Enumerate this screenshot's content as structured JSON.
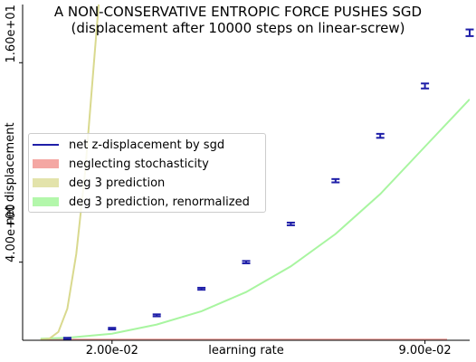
{
  "chart_data": {
    "type": "line",
    "title": "A NON-CONSERVATIVE ENTROPIC FORCE PUSHES SGD",
    "subtitle": "(displacement after 10000 steps on linear-screw)",
    "xlabel": "learning rate",
    "ylabel": "net displacement",
    "xlim": [
      0.0,
      0.1
    ],
    "ylim": [
      -0.7,
      19.5
    ],
    "xticks": [
      {
        "value": 0.02,
        "label": "2.00e-02"
      },
      {
        "value": 0.09,
        "label": "9.00e-02"
      }
    ],
    "yticks": [
      {
        "value": 4.0,
        "label": "4.00e+00"
      },
      {
        "value": 16.0,
        "label": "1.60e+01"
      }
    ],
    "grid": false,
    "legend_position": "center-left",
    "series": [
      {
        "name": "net z-displacement by sgd",
        "kind": "errorbar",
        "color": "#1f1fa8",
        "x": [
          0.01,
          0.02,
          0.03,
          0.04,
          0.05,
          0.06,
          0.07,
          0.08,
          0.09,
          0.1
        ],
        "y": [
          -0.6,
          0.0,
          0.8,
          2.4,
          4.0,
          6.3,
          8.9,
          11.6,
          14.6,
          17.8
        ],
        "err": [
          0.05,
          0.05,
          0.06,
          0.06,
          0.07,
          0.08,
          0.1,
          0.12,
          0.15,
          0.2
        ]
      },
      {
        "name": "neglecting stochasticity",
        "kind": "band",
        "color": "#f4a7a3",
        "x": [
          0.0,
          0.1
        ],
        "y": [
          -0.65,
          -0.65
        ]
      },
      {
        "name": "deg 3 prediction",
        "kind": "curve",
        "color": "#d9d98e",
        "x": [
          0.0,
          0.002,
          0.004,
          0.006,
          0.008,
          0.01,
          0.0115,
          0.013
        ],
        "y": [
          -0.65,
          -0.6,
          -0.2,
          1.2,
          4.5,
          9.5,
          14.5,
          19.5
        ]
      },
      {
        "name": "deg 3 prediction, renormalized",
        "kind": "curve",
        "color": "#a8f5a0",
        "x": [
          0.0,
          0.01,
          0.02,
          0.03,
          0.04,
          0.05,
          0.06,
          0.07,
          0.08,
          0.09,
          0.1
        ],
        "y": [
          -0.6,
          -0.55,
          -0.3,
          0.25,
          1.05,
          2.2,
          3.75,
          5.7,
          8.1,
          10.95,
          13.8
        ]
      }
    ]
  }
}
